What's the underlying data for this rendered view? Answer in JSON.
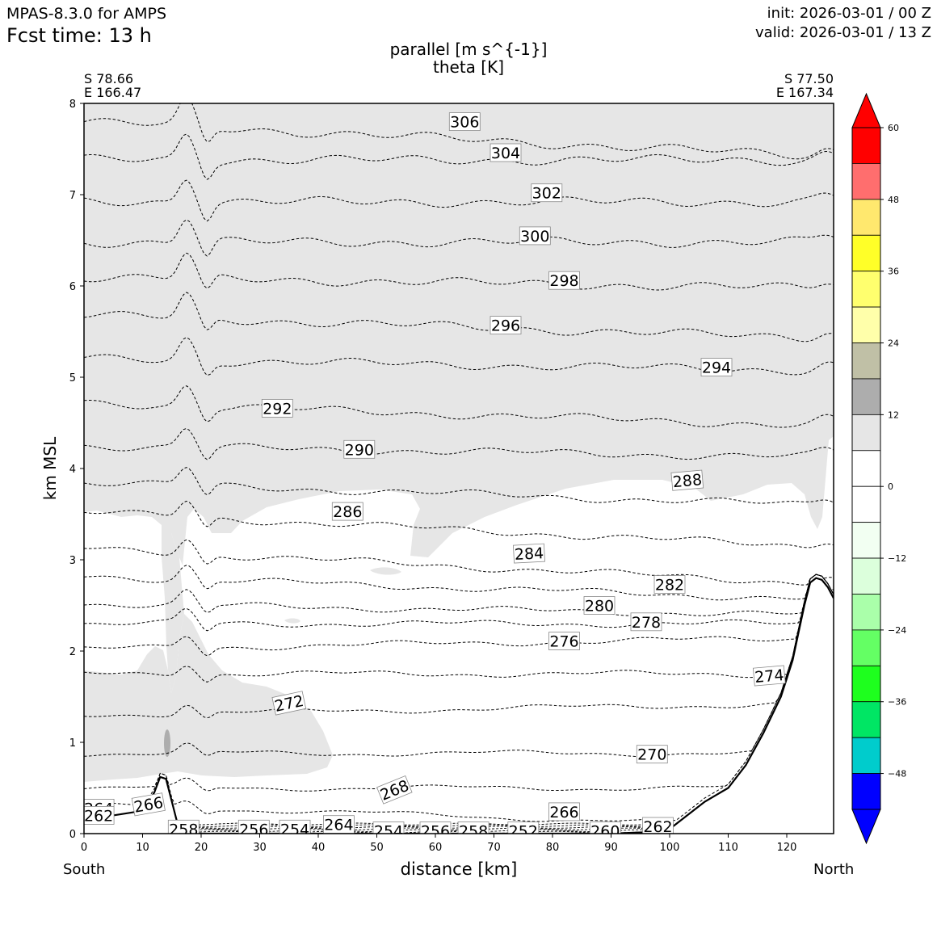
{
  "header": {
    "model": "MPAS-8.3.0 for AMPS",
    "fcst": "Fcst time:   13 h",
    "init": "init: 2026-03-01 / 00 Z",
    "valid": "valid: 2026-03-01 / 13 Z",
    "title_line1": "parallel [m s^{-1}]",
    "title_line2": "theta [K]",
    "left_lat": "S 78.66",
    "left_lon": "E 166.47",
    "right_lat": "S 77.50",
    "right_lon": "E 167.34",
    "south": "South",
    "north": "North"
  },
  "colors": {
    "shade_light": "#e6e6e6",
    "shade_mid": "#adadad",
    "terrain": "#ffffff"
  },
  "chart_data": {
    "type": "cross-section contour",
    "xlabel": "distance [km]",
    "ylabel": "km MSL",
    "xlim": [
      0,
      128
    ],
    "ylim": [
      0,
      8
    ],
    "xticks": [
      0,
      10,
      20,
      30,
      40,
      50,
      60,
      70,
      80,
      90,
      100,
      110,
      120
    ],
    "yticks": [
      0,
      1,
      2,
      3,
      4,
      5,
      6,
      7,
      8
    ],
    "terrain": {
      "x": [
        0,
        5,
        10,
        12,
        13,
        14,
        15,
        16,
        17,
        18,
        20,
        30,
        50,
        70,
        90,
        98,
        100,
        103,
        106,
        110,
        113,
        116,
        119,
        121,
        122,
        123,
        124,
        125,
        126,
        127,
        128
      ],
      "y": [
        0.15,
        0.2,
        0.25,
        0.45,
        0.62,
        0.6,
        0.35,
        0.1,
        0.03,
        0.01,
        0.0,
        0.0,
        0.0,
        0.0,
        0.0,
        0.02,
        0.05,
        0.2,
        0.35,
        0.5,
        0.75,
        1.1,
        1.5,
        1.9,
        2.2,
        2.5,
        2.75,
        2.8,
        2.78,
        2.7,
        2.58
      ]
    },
    "theta_lines": [
      {
        "value": 306,
        "y0": 7.8,
        "slope": -0.003
      },
      {
        "value": 304,
        "y0": 7.38,
        "slope": 0.0
      },
      {
        "value": 302,
        "y0": 6.92,
        "slope": 0.0
      },
      {
        "value": 300,
        "y0": 6.48,
        "slope": 0.0
      },
      {
        "value": 298,
        "y0": 6.1,
        "slope": -0.001
      },
      {
        "value": 296,
        "y0": 5.68,
        "slope": -0.002
      },
      {
        "value": 294,
        "y0": 5.2,
        "slope": -0.001
      },
      {
        "value": 292,
        "y0": 4.72,
        "slope": -0.002
      },
      {
        "value": 290,
        "y0": 4.25,
        "slope": -0.001
      },
      {
        "value": 288,
        "y0": 3.85,
        "slope": -0.002
      },
      {
        "value": 286,
        "y0": 3.52,
        "slope": -0.003
      },
      {
        "value": 284,
        "y0": 3.12,
        "slope": -0.003
      },
      {
        "value": 282,
        "y0": 2.82,
        "slope": -0.002
      },
      {
        "value": 280,
        "y0": 2.52,
        "slope": -0.001
      },
      {
        "value": 278,
        "y0": 2.3,
        "slope": -0.0
      },
      {
        "value": 276,
        "y0": 2.02,
        "slope": 0.001
      },
      {
        "value": 274,
        "y0": 1.75,
        "slope": 0.0
      },
      {
        "value": 272,
        "y0": 1.3,
        "slope": 0.001
      },
      {
        "value": 270,
        "y0": 0.88,
        "slope": 0.0
      },
      {
        "value": 268,
        "y0": 0.5,
        "slope": 0.0
      },
      {
        "value": 266,
        "y0": 0.32,
        "slope": -0.002
      }
    ],
    "contour_labels": [
      {
        "text": "306",
        "x": 65,
        "y": 7.8,
        "angle": 0
      },
      {
        "text": "304",
        "x": 72,
        "y": 7.46,
        "angle": 0
      },
      {
        "text": "302",
        "x": 79,
        "y": 7.02,
        "angle": 0
      },
      {
        "text": "300",
        "x": 77,
        "y": 6.55,
        "angle": 0
      },
      {
        "text": "298",
        "x": 82,
        "y": 6.06,
        "angle": 0
      },
      {
        "text": "296",
        "x": 72,
        "y": 5.57,
        "angle": 0
      },
      {
        "text": "294",
        "x": 108,
        "y": 5.11,
        "angle": 0
      },
      {
        "text": "292",
        "x": 33,
        "y": 4.66,
        "angle": 0
      },
      {
        "text": "290",
        "x": 47,
        "y": 4.21,
        "angle": 0
      },
      {
        "text": "288",
        "x": 103,
        "y": 3.87,
        "angle": -5
      },
      {
        "text": "286",
        "x": 45,
        "y": 3.53,
        "angle": 0
      },
      {
        "text": "284",
        "x": 76,
        "y": 3.07,
        "angle": -3
      },
      {
        "text": "282",
        "x": 100,
        "y": 2.73,
        "angle": 0
      },
      {
        "text": "280",
        "x": 88,
        "y": 2.5,
        "angle": 0
      },
      {
        "text": "278",
        "x": 96,
        "y": 2.32,
        "angle": 0
      },
      {
        "text": "276",
        "x": 82,
        "y": 2.11,
        "angle": 0
      },
      {
        "text": "274",
        "x": 117,
        "y": 1.73,
        "angle": -5
      },
      {
        "text": "272",
        "x": 35,
        "y": 1.43,
        "angle": -12
      },
      {
        "text": "270",
        "x": 97,
        "y": 0.87,
        "angle": 0
      },
      {
        "text": "268",
        "x": 53,
        "y": 0.48,
        "angle": -22
      },
      {
        "text": "266",
        "x": 11,
        "y": 0.32,
        "angle": -10
      },
      {
        "text": "264",
        "x": 2.5,
        "y": 0.28,
        "angle": 0
      },
      {
        "text": "262",
        "x": 2.5,
        "y": 0.2,
        "angle": 0
      },
      {
        "text": "266",
        "x": 82,
        "y": 0.24,
        "angle": 0
      },
      {
        "text": "258",
        "x": 17,
        "y": 0.05,
        "angle": 0
      },
      {
        "text": "256",
        "x": 29,
        "y": 0.05,
        "angle": 0
      },
      {
        "text": "254",
        "x": 36,
        "y": 0.05,
        "angle": 0
      },
      {
        "text": "264",
        "x": 43.5,
        "y": 0.1,
        "angle": 0
      },
      {
        "text": "254",
        "x": 52,
        "y": 0.03,
        "angle": 0
      },
      {
        "text": "256",
        "x": 60,
        "y": 0.03,
        "angle": 0
      },
      {
        "text": "258",
        "x": 66.5,
        "y": 0.03,
        "angle": 0
      },
      {
        "text": "252",
        "x": 75,
        "y": 0.03,
        "angle": 0
      },
      {
        "text": "260",
        "x": 89,
        "y": 0.03,
        "angle": 0
      },
      {
        "text": "262",
        "x": 98,
        "y": 0.08,
        "angle": 0
      }
    ],
    "colorbar": {
      "label_values": [
        "60",
        "48",
        "36",
        "24",
        "12",
        "0",
        "−12",
        "−24",
        "−36",
        "−48"
      ],
      "levels": [
        60,
        48,
        36,
        24,
        12,
        0,
        -12,
        -24,
        -36,
        -48
      ],
      "colors": [
        "#ff0000",
        "#ff6e6e",
        "#ffe86e",
        "#ffff28",
        "#ffff6e",
        "#ffffaa",
        "#c0c0a6",
        "#adadad",
        "#e6e6e6",
        "#ffffff",
        "#ffffff",
        "#f2fff2",
        "#dcffdc",
        "#aaffaa",
        "#64ff64",
        "#1eff1e",
        "#00e664",
        "#00cccc",
        "#0000ff"
      ],
      "extend_over": "#ff0000",
      "extend_under": "#0000ff"
    }
  }
}
